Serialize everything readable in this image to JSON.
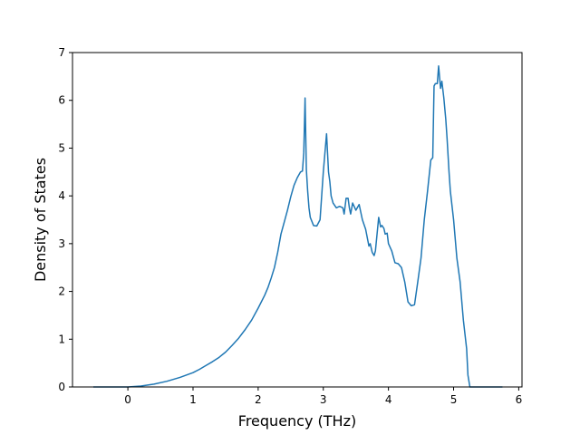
{
  "chart_data": {
    "type": "line",
    "title": "",
    "xlabel": "Frequency (THz)",
    "ylabel": "Density of States",
    "xlim": [
      -0.85,
      6.05
    ],
    "ylim": [
      0,
      7
    ],
    "xticks": [
      0,
      1,
      2,
      3,
      4,
      5,
      6
    ],
    "yticks": [
      0,
      1,
      2,
      3,
      4,
      5,
      6,
      7
    ],
    "grid": false,
    "legend": "none",
    "series": [
      {
        "name": "",
        "color": "#1f77b4",
        "x": [
          -0.53,
          0.0,
          0.2,
          0.4,
          0.6,
          0.8,
          0.9,
          1.0,
          1.1,
          1.2,
          1.3,
          1.4,
          1.5,
          1.6,
          1.7,
          1.8,
          1.9,
          2.0,
          2.1,
          2.15,
          2.2,
          2.25,
          2.3,
          2.35,
          2.4,
          2.45,
          2.5,
          2.55,
          2.6,
          2.65,
          2.68,
          2.7,
          2.72,
          2.74,
          2.76,
          2.78,
          2.8,
          2.85,
          2.9,
          2.95,
          3.0,
          3.05,
          3.08,
          3.1,
          3.12,
          3.15,
          3.2,
          3.25,
          3.3,
          3.32,
          3.35,
          3.38,
          3.4,
          3.42,
          3.45,
          3.5,
          3.55,
          3.6,
          3.65,
          3.7,
          3.72,
          3.75,
          3.78,
          3.8,
          3.85,
          3.88,
          3.9,
          3.93,
          3.95,
          3.98,
          4.0,
          4.05,
          4.1,
          4.15,
          4.2,
          4.25,
          4.3,
          4.35,
          4.4,
          4.45,
          4.5,
          4.55,
          4.6,
          4.65,
          4.68,
          4.7,
          4.72,
          4.75,
          4.77,
          4.8,
          4.82,
          4.85,
          4.88,
          4.9,
          4.93,
          4.95,
          5.0,
          5.05,
          5.08,
          5.1,
          5.15,
          5.2,
          5.22,
          5.25,
          5.3,
          5.4,
          5.5,
          5.6,
          5.75
        ],
        "values": [
          0,
          0,
          0.02,
          0.06,
          0.12,
          0.2,
          0.25,
          0.3,
          0.37,
          0.45,
          0.53,
          0.62,
          0.73,
          0.87,
          1.02,
          1.2,
          1.4,
          1.65,
          1.92,
          2.08,
          2.28,
          2.5,
          2.82,
          3.2,
          3.45,
          3.7,
          3.98,
          4.22,
          4.38,
          4.5,
          4.52,
          4.9,
          6.05,
          4.55,
          4.1,
          3.75,
          3.55,
          3.38,
          3.37,
          3.5,
          4.5,
          5.3,
          4.5,
          4.3,
          4.0,
          3.85,
          3.75,
          3.78,
          3.75,
          3.62,
          3.95,
          3.95,
          3.75,
          3.62,
          3.85,
          3.7,
          3.82,
          3.5,
          3.3,
          2.95,
          3.0,
          2.82,
          2.75,
          2.85,
          3.55,
          3.35,
          3.38,
          3.32,
          3.2,
          3.22,
          3.0,
          2.85,
          2.6,
          2.58,
          2.5,
          2.2,
          1.78,
          1.7,
          1.72,
          2.2,
          2.7,
          3.5,
          4.1,
          4.75,
          4.8,
          6.3,
          6.35,
          6.35,
          6.72,
          6.25,
          6.4,
          6.05,
          5.6,
          5.2,
          4.5,
          4.1,
          3.5,
          2.7,
          2.4,
          2.2,
          1.4,
          0.8,
          0.25,
          0,
          0,
          0,
          0,
          0,
          0
        ]
      }
    ]
  }
}
